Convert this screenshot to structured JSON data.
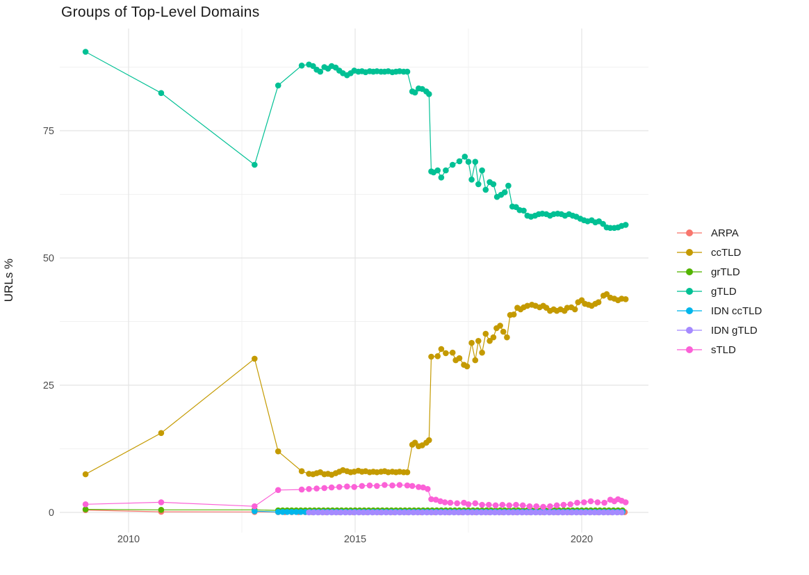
{
  "chart_data": {
    "type": "line",
    "title": "Groups of Top-Level Domains",
    "xlabel": "",
    "ylabel": "URLs %",
    "grid": "on",
    "legend_position": "right-center",
    "x_axis": {
      "range": [
        2008.45,
        2021.47
      ],
      "major_ticks": [
        {
          "value": 2010,
          "label": "2010"
        },
        {
          "value": 2015,
          "label": "2015"
        },
        {
          "value": 2020,
          "label": "2020"
        }
      ],
      "minor_ticks": [
        2012.5,
        2017.5
      ]
    },
    "y_axis": {
      "range": [
        -4.5,
        95.1
      ],
      "major_ticks": [
        {
          "value": 0,
          "label": "0"
        },
        {
          "value": 25,
          "label": "25"
        },
        {
          "value": 50,
          "label": "50"
        },
        {
          "value": 75,
          "label": "75"
        }
      ],
      "minor_ticks": [
        12.5,
        37.5,
        62.5,
        87.5
      ]
    },
    "series": [
      {
        "name": "ARPA",
        "color": "#F8766D",
        "points": [
          [
            2009.05,
            0.45
          ],
          [
            2010.72,
            0.12
          ],
          [
            2012.78,
            0.1
          ]
        ],
        "fill": {
          "from": 2013.3,
          "to": 2020.97,
          "step": 0.15,
          "value": 0.05
        }
      },
      {
        "name": "ccTLD",
        "color": "#C49A00",
        "points": [
          [
            2009.05,
            7.5
          ],
          [
            2010.72,
            15.6
          ],
          [
            2012.78,
            30.2
          ],
          [
            2013.3,
            12.0
          ],
          [
            2013.82,
            8.1
          ],
          [
            2013.98,
            7.6
          ],
          [
            2014.07,
            7.5
          ],
          [
            2014.15,
            7.7
          ],
          [
            2014.23,
            7.9
          ],
          [
            2014.32,
            7.5
          ],
          [
            2014.4,
            7.6
          ],
          [
            2014.48,
            7.4
          ],
          [
            2014.57,
            7.7
          ],
          [
            2014.65,
            8.0
          ],
          [
            2014.73,
            8.3
          ],
          [
            2014.82,
            8.1
          ],
          [
            2014.9,
            7.9
          ],
          [
            2014.98,
            8.0
          ],
          [
            2015.07,
            8.2
          ],
          [
            2015.15,
            8.0
          ],
          [
            2015.23,
            8.1
          ],
          [
            2015.32,
            7.9
          ],
          [
            2015.4,
            8.0
          ],
          [
            2015.48,
            7.9
          ],
          [
            2015.57,
            8.0
          ],
          [
            2015.65,
            8.1
          ],
          [
            2015.73,
            7.9
          ],
          [
            2015.82,
            8.0
          ],
          [
            2015.9,
            7.9
          ],
          [
            2015.98,
            8.0
          ],
          [
            2016.07,
            7.9
          ],
          [
            2016.15,
            7.9
          ],
          [
            2016.26,
            13.3
          ],
          [
            2016.32,
            13.7
          ],
          [
            2016.4,
            13.0
          ],
          [
            2016.48,
            13.2
          ],
          [
            2016.57,
            13.7
          ],
          [
            2016.63,
            14.2
          ],
          [
            2016.68,
            30.6
          ],
          [
            2016.82,
            30.7
          ],
          [
            2016.9,
            32.1
          ],
          [
            2017.0,
            31.3
          ],
          [
            2017.15,
            31.4
          ],
          [
            2017.22,
            29.9
          ],
          [
            2017.3,
            30.3
          ],
          [
            2017.4,
            29.0
          ],
          [
            2017.47,
            28.7
          ],
          [
            2017.57,
            33.3
          ],
          [
            2017.65,
            29.9
          ],
          [
            2017.72,
            33.7
          ],
          [
            2017.8,
            31.4
          ],
          [
            2017.88,
            35.1
          ],
          [
            2017.97,
            33.7
          ],
          [
            2018.05,
            34.4
          ],
          [
            2018.12,
            36.2
          ],
          [
            2018.2,
            36.7
          ],
          [
            2018.27,
            35.5
          ],
          [
            2018.35,
            34.4
          ],
          [
            2018.42,
            38.8
          ],
          [
            2018.5,
            38.9
          ],
          [
            2018.58,
            40.2
          ],
          [
            2018.65,
            39.9
          ],
          [
            2018.72,
            40.3
          ],
          [
            2018.8,
            40.6
          ],
          [
            2018.9,
            40.8
          ],
          [
            2018.98,
            40.6
          ],
          [
            2019.07,
            40.3
          ],
          [
            2019.15,
            40.6
          ],
          [
            2019.22,
            40.2
          ],
          [
            2019.3,
            39.6
          ],
          [
            2019.38,
            39.9
          ],
          [
            2019.45,
            39.6
          ],
          [
            2019.53,
            39.9
          ],
          [
            2019.62,
            39.6
          ],
          [
            2019.68,
            40.2
          ],
          [
            2019.77,
            40.3
          ],
          [
            2019.85,
            39.9
          ],
          [
            2019.92,
            41.3
          ],
          [
            2020.0,
            41.7
          ],
          [
            2020.07,
            41.0
          ],
          [
            2020.15,
            40.8
          ],
          [
            2020.22,
            40.6
          ],
          [
            2020.3,
            41.0
          ],
          [
            2020.37,
            41.3
          ],
          [
            2020.48,
            42.6
          ],
          [
            2020.55,
            42.9
          ],
          [
            2020.63,
            42.2
          ],
          [
            2020.72,
            42.0
          ],
          [
            2020.8,
            41.7
          ],
          [
            2020.88,
            42.0
          ],
          [
            2020.97,
            41.9
          ]
        ]
      },
      {
        "name": "grTLD",
        "color": "#53B400",
        "points": [
          [
            2009.05,
            0.6
          ],
          [
            2010.72,
            0.5
          ],
          [
            2012.78,
            0.5
          ]
        ],
        "fill": {
          "from": 2013.3,
          "to": 2020.97,
          "step": 0.1,
          "value": 0.4
        }
      },
      {
        "name": "gTLD",
        "color": "#00C094",
        "points": [
          [
            2009.05,
            90.5
          ],
          [
            2010.72,
            82.4
          ],
          [
            2012.78,
            68.3
          ],
          [
            2013.3,
            83.9
          ],
          [
            2013.82,
            87.8
          ],
          [
            2013.98,
            88.0
          ],
          [
            2014.07,
            87.7
          ],
          [
            2014.15,
            87.0
          ],
          [
            2014.23,
            86.6
          ],
          [
            2014.32,
            87.5
          ],
          [
            2014.4,
            87.2
          ],
          [
            2014.48,
            87.7
          ],
          [
            2014.57,
            87.4
          ],
          [
            2014.65,
            86.8
          ],
          [
            2014.73,
            86.3
          ],
          [
            2014.82,
            85.9
          ],
          [
            2014.9,
            86.3
          ],
          [
            2014.98,
            86.8
          ],
          [
            2015.07,
            86.6
          ],
          [
            2015.15,
            86.7
          ],
          [
            2015.23,
            86.5
          ],
          [
            2015.32,
            86.7
          ],
          [
            2015.4,
            86.6
          ],
          [
            2015.48,
            86.7
          ],
          [
            2015.57,
            86.6
          ],
          [
            2015.65,
            86.6
          ],
          [
            2015.73,
            86.7
          ],
          [
            2015.82,
            86.5
          ],
          [
            2015.9,
            86.6
          ],
          [
            2015.98,
            86.7
          ],
          [
            2016.07,
            86.6
          ],
          [
            2016.15,
            86.6
          ],
          [
            2016.26,
            82.7
          ],
          [
            2016.32,
            82.5
          ],
          [
            2016.4,
            83.3
          ],
          [
            2016.48,
            83.2
          ],
          [
            2016.57,
            82.7
          ],
          [
            2016.63,
            82.2
          ],
          [
            2016.68,
            67.0
          ],
          [
            2016.73,
            66.8
          ],
          [
            2016.82,
            67.2
          ],
          [
            2016.9,
            65.8
          ],
          [
            2017.0,
            67.2
          ],
          [
            2017.15,
            68.3
          ],
          [
            2017.3,
            69.0
          ],
          [
            2017.42,
            69.9
          ],
          [
            2017.5,
            68.9
          ],
          [
            2017.57,
            65.4
          ],
          [
            2017.65,
            68.9
          ],
          [
            2017.72,
            64.5
          ],
          [
            2017.8,
            67.2
          ],
          [
            2017.88,
            63.4
          ],
          [
            2017.97,
            64.9
          ],
          [
            2018.05,
            64.5
          ],
          [
            2018.13,
            62.0
          ],
          [
            2018.22,
            62.4
          ],
          [
            2018.3,
            62.9
          ],
          [
            2018.38,
            64.2
          ],
          [
            2018.47,
            60.1
          ],
          [
            2018.55,
            60.0
          ],
          [
            2018.63,
            59.4
          ],
          [
            2018.72,
            59.3
          ],
          [
            2018.8,
            58.3
          ],
          [
            2018.88,
            58.1
          ],
          [
            2018.97,
            58.3
          ],
          [
            2019.05,
            58.6
          ],
          [
            2019.13,
            58.7
          ],
          [
            2019.22,
            58.6
          ],
          [
            2019.3,
            58.3
          ],
          [
            2019.38,
            58.6
          ],
          [
            2019.47,
            58.7
          ],
          [
            2019.55,
            58.6
          ],
          [
            2019.63,
            58.3
          ],
          [
            2019.72,
            58.6
          ],
          [
            2019.8,
            58.3
          ],
          [
            2019.88,
            58.1
          ],
          [
            2019.97,
            57.7
          ],
          [
            2020.05,
            57.4
          ],
          [
            2020.13,
            57.2
          ],
          [
            2020.22,
            57.4
          ],
          [
            2020.3,
            57.0
          ],
          [
            2020.38,
            57.2
          ],
          [
            2020.47,
            56.7
          ],
          [
            2020.55,
            56.0
          ],
          [
            2020.63,
            55.9
          ],
          [
            2020.72,
            55.9
          ],
          [
            2020.8,
            56.0
          ],
          [
            2020.88,
            56.3
          ],
          [
            2020.97,
            56.5
          ]
        ]
      },
      {
        "name": "IDN ccTLD",
        "color": "#00B6EB",
        "points": [
          [
            2012.78,
            0.25
          ]
        ],
        "fill": {
          "from": 2013.3,
          "to": 2020.97,
          "step": 0.1,
          "value": 0.1
        }
      },
      {
        "name": "IDN gTLD",
        "color": "#A58AFF",
        "points": [],
        "fill": {
          "from": 2013.98,
          "to": 2020.97,
          "step": 0.1,
          "value": 0.02
        }
      },
      {
        "name": "sTLD",
        "color": "#FB61D7",
        "points": [
          [
            2009.05,
            1.6
          ],
          [
            2010.72,
            2.0
          ],
          [
            2012.78,
            1.2
          ],
          [
            2013.3,
            4.4
          ],
          [
            2013.82,
            4.5
          ],
          [
            2013.98,
            4.6
          ],
          [
            2014.15,
            4.7
          ],
          [
            2014.32,
            4.8
          ],
          [
            2014.48,
            4.9
          ],
          [
            2014.65,
            5.0
          ],
          [
            2014.82,
            5.1
          ],
          [
            2014.98,
            5.0
          ],
          [
            2015.15,
            5.2
          ],
          [
            2015.32,
            5.3
          ],
          [
            2015.48,
            5.2
          ],
          [
            2015.65,
            5.4
          ],
          [
            2015.82,
            5.3
          ],
          [
            2015.98,
            5.4
          ],
          [
            2016.15,
            5.3
          ],
          [
            2016.26,
            5.2
          ],
          [
            2016.4,
            5.0
          ],
          [
            2016.5,
            4.9
          ],
          [
            2016.6,
            4.6
          ],
          [
            2016.68,
            2.6
          ],
          [
            2016.78,
            2.5
          ],
          [
            2016.88,
            2.2
          ],
          [
            2016.98,
            2.0
          ],
          [
            2017.1,
            1.9
          ],
          [
            2017.25,
            1.8
          ],
          [
            2017.4,
            1.9
          ],
          [
            2017.5,
            1.6
          ],
          [
            2017.65,
            1.8
          ],
          [
            2017.8,
            1.5
          ],
          [
            2017.95,
            1.5
          ],
          [
            2018.1,
            1.4
          ],
          [
            2018.25,
            1.5
          ],
          [
            2018.4,
            1.4
          ],
          [
            2018.55,
            1.5
          ],
          [
            2018.7,
            1.4
          ],
          [
            2018.85,
            1.2
          ],
          [
            2019.0,
            1.2
          ],
          [
            2019.15,
            1.1
          ],
          [
            2019.3,
            1.2
          ],
          [
            2019.45,
            1.4
          ],
          [
            2019.6,
            1.5
          ],
          [
            2019.75,
            1.6
          ],
          [
            2019.9,
            1.9
          ],
          [
            2020.05,
            2.0
          ],
          [
            2020.2,
            2.2
          ],
          [
            2020.35,
            2.0
          ],
          [
            2020.5,
            1.9
          ],
          [
            2020.63,
            2.5
          ],
          [
            2020.72,
            2.2
          ],
          [
            2020.8,
            2.6
          ],
          [
            2020.88,
            2.3
          ],
          [
            2020.97,
            2.0
          ]
        ]
      }
    ]
  },
  "colors": {
    "background": "#FFFFFF",
    "grid_major": "#E4E4E4",
    "grid_minor": "#F1F1F1",
    "tick_label": "#4D4D4D",
    "text": "#1A1A1A"
  }
}
